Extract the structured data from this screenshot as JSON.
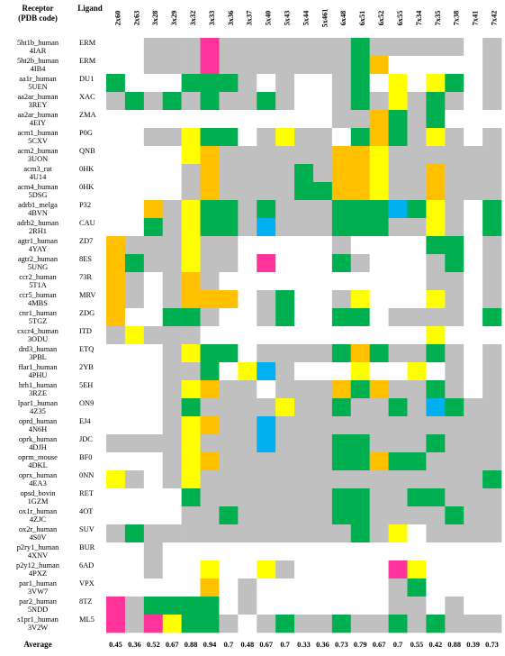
{
  "chart_data": {
    "type": "heatmap",
    "header": {
      "receptor_label": "Receptor",
      "pdb_label": "(PDB code)",
      "ligand_label": "Ligand",
      "average_label": "Average"
    },
    "columns": [
      "2x60",
      "2x63",
      "3x28",
      "3x29",
      "3x32",
      "3x33",
      "3x36",
      "3x37",
      "5x40",
      "5x43",
      "5x44",
      "5x461",
      "6x48",
      "6x51",
      "6x52",
      "6x55",
      "7x34",
      "7x35",
      "7x38",
      "7x41",
      "7x42"
    ],
    "averages": [
      "0.45",
      "0.36",
      "0.52",
      "0.67",
      "0.88",
      "0.94",
      "0.7",
      "0.48",
      "0.67",
      "0.7",
      "0.33",
      "0.36",
      "0.73",
      "0.79",
      "0.67",
      "0.7",
      "0.55",
      "0.42",
      "0.88",
      "0.39",
      "0.73"
    ],
    "legend_colors": {
      "W": "#ffffff",
      "G": "#c0c0c0",
      "N": "#00b050",
      "Y": "#ffff00",
      "O": "#ffc000",
      "P": "#ff3399",
      "B": "#00b0f0"
    },
    "rows": [
      {
        "receptor": "5ht1b_human",
        "pdb": "4IAR",
        "ligand": "ERM",
        "cells": "WWGGGPGGGGGGGNGGGGGWG"
      },
      {
        "receptor": "5ht2b_human",
        "pdb": "4IB4",
        "ligand": "ERM",
        "cells": "WWGGGPGGGGGGGNOWWWWWG"
      },
      {
        "receptor": "aa1r_human",
        "pdb": "5UEN",
        "ligand": "DU1",
        "cells": "NWWWNNNGWGWWGNWYWYNWG"
      },
      {
        "receptor": "aa2ar_human",
        "pdb": "3REY",
        "ligand": "XAC",
        "cells": "GNGNGNGGNGWWGNGYGNGWG"
      },
      {
        "receptor": "aa2ar_human",
        "pdb": "4EIY",
        "ligand": "ZMA",
        "cells": "WWWWWWWWWWWWGGONGNWWW"
      },
      {
        "receptor": "acm1_human",
        "pdb": "5CXV",
        "ligand": "P0G",
        "cells": "WWGGYNNWGYGGWNONGYGWG"
      },
      {
        "receptor": "acm2_human",
        "pdb": "3UON",
        "ligand": "QNB",
        "cells": "WWWWYOGGGGGGOOYGGGGGG"
      },
      {
        "receptor": "acm3_rat",
        "pdb": "4U14",
        "ligand": "0HK",
        "cells": "WWWWGOGGGGNGOOYGGOGGG"
      },
      {
        "receptor": "acm4_human",
        "pdb": "5DSG",
        "ligand": "0HK",
        "cells": "WWWWGOGGGGNNOOYGGOGGG"
      },
      {
        "receptor": "adrb1_melga",
        "pdb": "4BVN",
        "ligand": "P32",
        "cells": "WWOGYNNGNGGGNNNBNYGWN"
      },
      {
        "receptor": "adrb2_human",
        "pdb": "2RH1",
        "ligand": "CAU",
        "cells": "WWNGYNNGBGGGNNNGGYGWN"
      },
      {
        "receptor": "agtr1_human",
        "pdb": "4YAY",
        "ligand": "ZD7",
        "cells": "OGGGYGGWWWWWGWWWWNNWG"
      },
      {
        "receptor": "agtr2_human",
        "pdb": "5UNG",
        "ligand": "8ES",
        "cells": "ONGGYGGWPWWWNGWWWGNWG"
      },
      {
        "receptor": "ccr2_human",
        "pdb": "5T1A",
        "ligand": "73R",
        "cells": "OGWGOGWWWWWWWWWWWGGWG"
      },
      {
        "receptor": "ccr5_human",
        "pdb": "4MBS",
        "ligand": "MRV",
        "cells": "OGWGOOOWGNWWGYWWWYGWG"
      },
      {
        "receptor": "cnr1_human",
        "pdb": "5TGZ",
        "ligand": "ZDG",
        "cells": "OWWNNGWWGNWWNNWGGGGWN"
      },
      {
        "receptor": "cxcr4_human",
        "pdb": "3ODU",
        "ligand": "ITD",
        "cells": "GYGGGWWWWWWWWWWWWYWWW"
      },
      {
        "receptor": "drd3_human",
        "pdb": "3PBL",
        "ligand": "ETQ",
        "cells": "WWWGYNNWGGGGNONGGNGWG"
      },
      {
        "receptor": "ffar1_human",
        "pdb": "4PHU",
        "ligand": "2YB",
        "cells": "WWWGGNWYBGWWWYWWYWGWG"
      },
      {
        "receptor": "hrh1_human",
        "pdb": "3RZE",
        "ligand": "5EH",
        "cells": "WWWGYOGGWGGGONOGGNGWG"
      },
      {
        "receptor": "lpar1_human",
        "pdb": "4Z35",
        "ligand": "ON9",
        "cells": "WWWGNGGGGYGGNGGNGBNGG"
      },
      {
        "receptor": "oprd_human",
        "pdb": "4N6H",
        "ligand": "EJ4",
        "cells": "WWWGYOGGBGGGGGGGGGGGG"
      },
      {
        "receptor": "oprk_human",
        "pdb": "4DJH",
        "ligand": "JDC",
        "cells": "GGGGYGGGBGGGNNGGGNGGG"
      },
      {
        "receptor": "oprm_mouse",
        "pdb": "4DKL",
        "ligand": "BF0",
        "cells": "WWWGYOGGGGGGNNONNGGGG"
      },
      {
        "receptor": "oprx_human",
        "pdb": "4EA3",
        "ligand": "0NN",
        "cells": "YGWGYGGGGGGGGGGGGGGGN"
      },
      {
        "receptor": "opsd_bovin",
        "pdb": "1GZM",
        "ligand": "RET",
        "cells": "WWWWNGGGGGGGNNGGNNGGG"
      },
      {
        "receptor": "ox1r_human",
        "pdb": "4ZJC",
        "ligand": "4OT",
        "cells": "WWWWGGNGGGGGNNGGGGNGG"
      },
      {
        "receptor": "ox2r_human",
        "pdb": "4S0V",
        "ligand": "SUV",
        "cells": "GNGGGGGGGGGGGNGYWGGGG"
      },
      {
        "receptor": "p2ry1_human",
        "pdb": "4XNV",
        "ligand": "BUR",
        "cells": "WWGWWWWWWWWWWWWWWWWWW"
      },
      {
        "receptor": "p2y12_human",
        "pdb": "4PXZ",
        "ligand": "6AD",
        "cells": "WWGWWYWWYGWWWWWPYWWWW"
      },
      {
        "receptor": "par1_human",
        "pdb": "3VW7",
        "ligand": "VPX",
        "cells": "WWWWWOWGWWWWWWWGNWWWW"
      },
      {
        "receptor": "par2_human",
        "pdb": "5NDD",
        "ligand": "8TZ",
        "cells": "PGNNNNWGWWWWWWWGGWGWW"
      },
      {
        "receptor": "s1pr1_human",
        "pdb": "3V2W",
        "ligand": "ML5",
        "cells": "PGPYNNGWGNGGNGGNGNGGG"
      }
    ]
  }
}
